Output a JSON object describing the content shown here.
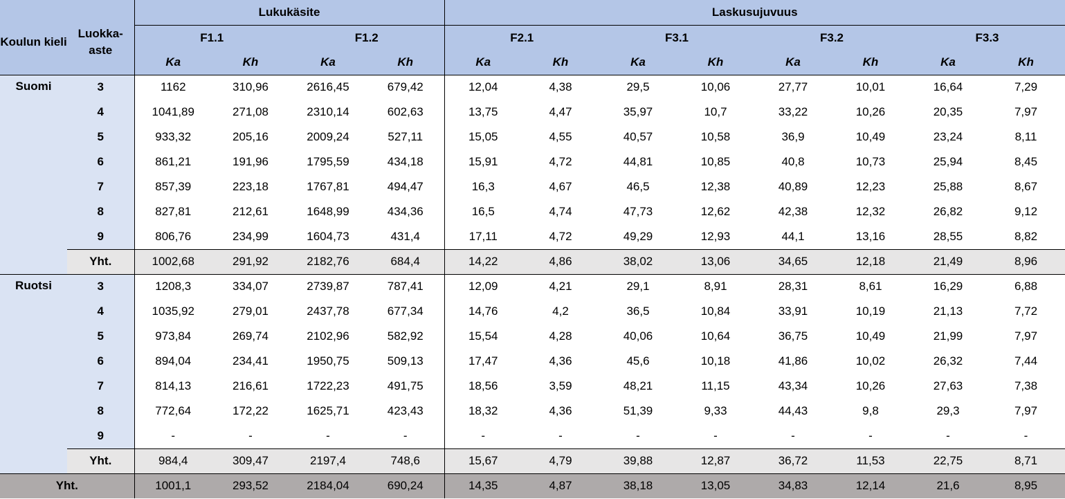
{
  "headers": {
    "school_language": "Koulun kieli",
    "grade_level": "Luokka-aste",
    "group_lukukasite": "Lukukäsite",
    "group_laskusujuvuus": "Laskusujuvuus",
    "measures": [
      "F1.1",
      "F1.2",
      "F2.1",
      "F3.1",
      "F3.2",
      "F3.3"
    ],
    "stat_mean": "Ka",
    "stat_sd": "Kh"
  },
  "groups": [
    {
      "language": "Suomi",
      "rows": [
        {
          "grade": "3",
          "values": [
            "1162",
            "310,96",
            "2616,45",
            "679,42",
            "12,04",
            "4,38",
            "29,5",
            "10,06",
            "27,77",
            "10,01",
            "16,64",
            "7,29"
          ]
        },
        {
          "grade": "4",
          "values": [
            "1041,89",
            "271,08",
            "2310,14",
            "602,63",
            "13,75",
            "4,47",
            "35,97",
            "10,7",
            "33,22",
            "10,26",
            "20,35",
            "7,97"
          ]
        },
        {
          "grade": "5",
          "values": [
            "933,32",
            "205,16",
            "2009,24",
            "527,11",
            "15,05",
            "4,55",
            "40,57",
            "10,58",
            "36,9",
            "10,49",
            "23,24",
            "8,11"
          ]
        },
        {
          "grade": "6",
          "values": [
            "861,21",
            "191,96",
            "1795,59",
            "434,18",
            "15,91",
            "4,72",
            "44,81",
            "10,85",
            "40,8",
            "10,73",
            "25,94",
            "8,45"
          ]
        },
        {
          "grade": "7",
          "values": [
            "857,39",
            "223,18",
            "1767,81",
            "494,47",
            "16,3",
            "4,67",
            "46,5",
            "12,38",
            "40,89",
            "12,23",
            "25,88",
            "8,67"
          ]
        },
        {
          "grade": "8",
          "values": [
            "827,81",
            "212,61",
            "1648,99",
            "434,36",
            "16,5",
            "4,74",
            "47,73",
            "12,62",
            "42,38",
            "12,32",
            "26,82",
            "9,12"
          ]
        },
        {
          "grade": "9",
          "values": [
            "806,76",
            "234,99",
            "1604,73",
            "431,4",
            "17,11",
            "4,72",
            "49,29",
            "12,93",
            "44,1",
            "13,16",
            "28,55",
            "8,82"
          ]
        }
      ],
      "subtotal": {
        "label": "Yht.",
        "values": [
          "1002,68",
          "291,92",
          "2182,76",
          "684,4",
          "14,22",
          "4,86",
          "38,02",
          "13,06",
          "34,65",
          "12,18",
          "21,49",
          "8,96"
        ]
      }
    },
    {
      "language": "Ruotsi",
      "rows": [
        {
          "grade": "3",
          "values": [
            "1208,3",
            "334,07",
            "2739,87",
            "787,41",
            "12,09",
            "4,21",
            "29,1",
            "8,91",
            "28,31",
            "8,61",
            "16,29",
            "6,88"
          ]
        },
        {
          "grade": "4",
          "values": [
            "1035,92",
            "279,01",
            "2437,78",
            "677,34",
            "14,76",
            "4,2",
            "36,5",
            "10,84",
            "33,91",
            "10,19",
            "21,13",
            "7,72"
          ]
        },
        {
          "grade": "5",
          "values": [
            "973,84",
            "269,74",
            "2102,96",
            "582,92",
            "15,54",
            "4,28",
            "40,06",
            "10,64",
            "36,75",
            "10,49",
            "21,99",
            "7,97"
          ]
        },
        {
          "grade": "6",
          "values": [
            "894,04",
            "234,41",
            "1950,75",
            "509,13",
            "17,47",
            "4,36",
            "45,6",
            "10,18",
            "41,86",
            "10,02",
            "26,32",
            "7,44"
          ]
        },
        {
          "grade": "7",
          "values": [
            "814,13",
            "216,61",
            "1722,23",
            "491,75",
            "18,56",
            "3,59",
            "48,21",
            "11,15",
            "43,34",
            "10,26",
            "27,63",
            "7,38"
          ]
        },
        {
          "grade": "8",
          "values": [
            "772,64",
            "172,22",
            "1625,71",
            "423,43",
            "18,32",
            "4,36",
            "51,39",
            "9,33",
            "44,43",
            "9,8",
            "29,3",
            "7,97"
          ]
        },
        {
          "grade": "9",
          "values": [
            "-",
            "-",
            "-",
            "-",
            "-",
            "-",
            "-",
            "-",
            "-",
            "-",
            "-",
            "-"
          ]
        }
      ],
      "subtotal": {
        "label": "Yht.",
        "values": [
          "984,4",
          "309,47",
          "2197,4",
          "748,6",
          "15,67",
          "4,79",
          "39,88",
          "12,87",
          "36,72",
          "11,53",
          "22,75",
          "8,71"
        ]
      }
    }
  ],
  "total": {
    "label": "Yht.",
    "values": [
      "1001,1",
      "293,52",
      "2184,04",
      "690,24",
      "14,35",
      "4,87",
      "38,18",
      "13,05",
      "34,83",
      "12,14",
      "21,6",
      "8,95"
    ]
  }
}
